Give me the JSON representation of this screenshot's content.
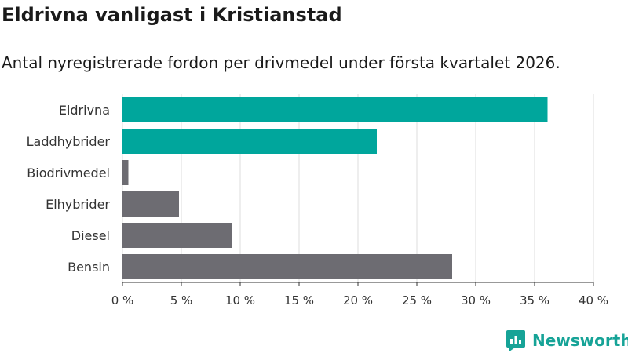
{
  "title": "Eldrivna vanligast i Kristianstad",
  "subtitle": "Antal nyregistrerade fordon per drivmedel under första kvartalet 2026.",
  "brand": {
    "name": "Newsworthy",
    "color": "#16a397"
  },
  "colors": {
    "highlight": "#00a69c",
    "neutral": "#6d6c72",
    "grid": "#dddddd"
  },
  "chart_data": {
    "type": "bar",
    "orientation": "horizontal",
    "categories": [
      "Eldrivna",
      "Laddhybrider",
      "Biodrivmedel",
      "Elhybrider",
      "Diesel",
      "Bensin"
    ],
    "values": [
      36.1,
      21.6,
      0.5,
      4.8,
      9.3,
      28.0
    ],
    "highlighted": [
      true,
      true,
      false,
      false,
      false,
      false
    ],
    "xlim": [
      0,
      40
    ],
    "xticks": [
      0,
      5,
      10,
      15,
      20,
      25,
      30,
      35,
      40
    ],
    "xtick_labels": [
      "0 %",
      "5 %",
      "10 %",
      "15 %",
      "20 %",
      "25 %",
      "30 %",
      "35 %",
      "40 %"
    ],
    "grid": true,
    "legend": "none"
  }
}
